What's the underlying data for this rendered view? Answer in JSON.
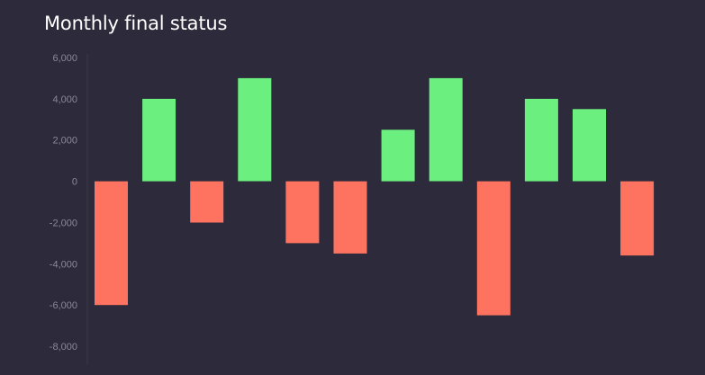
{
  "chart_data": {
    "type": "bar",
    "title": "Monthly final status",
    "xlabel": "",
    "ylabel": "",
    "ylim": [
      -8000,
      6000
    ],
    "yticks": [
      6000,
      4000,
      2000,
      0,
      -2000,
      -4000,
      -6000,
      -8000
    ],
    "ytick_labels": [
      "6,000",
      "4,000",
      "2,000",
      "0",
      "-2,000",
      "-4,000",
      "-6,000",
      "-8,000"
    ],
    "values": [
      -6000,
      4000,
      -2000,
      5000,
      -3000,
      -3500,
      2500,
      5000,
      -6500,
      4000,
      3500,
      -3600
    ],
    "grid": false,
    "legend": "none",
    "colors": {
      "positive": "#6bf080",
      "negative": "#fe7360",
      "background": "#2d2a3b",
      "axis": "#3b384a",
      "tick_text": "#8b8898",
      "title": "#ffffff"
    }
  }
}
